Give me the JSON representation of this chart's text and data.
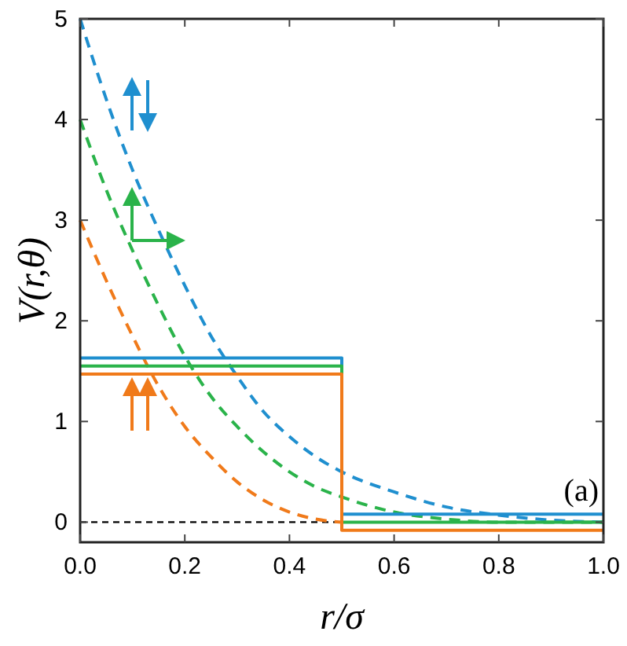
{
  "chart_data": {
    "type": "line",
    "xlabel": "r/σ",
    "ylabel": "V(r,θ)",
    "xlim": [
      0,
      1
    ],
    "ylim": [
      -0.2,
      5
    ],
    "xticks": [
      {
        "value": 0,
        "label": "0.0"
      },
      {
        "value": 0.2,
        "label": "0.2"
      },
      {
        "value": 0.4,
        "label": "0.4"
      },
      {
        "value": 0.6,
        "label": "0.6"
      },
      {
        "value": 0.8,
        "label": "0.8"
      },
      {
        "value": 1,
        "label": "1.0"
      }
    ],
    "yticks": [
      0,
      1,
      2,
      3,
      4,
      5
    ],
    "grid": false,
    "ref_lines": [
      {
        "axis": "y",
        "value": 0,
        "color": "#000000",
        "line_style": "dashed"
      }
    ],
    "annotations": [
      "(a)"
    ],
    "series": [
      {
        "line_style": "dashed",
        "color": "#1f8fcf",
        "x": [
          0,
          0.05,
          0.1,
          0.15,
          0.2,
          0.25,
          0.3,
          0.35,
          0.4,
          0.45,
          0.5,
          0.6,
          0.7,
          0.8,
          0.9,
          1
        ],
        "values": [
          5,
          4.2,
          3.5,
          2.9,
          2.35,
          1.85,
          1.45,
          1.1,
          0.85,
          0.65,
          0.5,
          0.3,
          0.15,
          0.07,
          0.02,
          0
        ]
      },
      {
        "line_style": "dashed",
        "color": "#2ab34a",
        "x": [
          0,
          0.05,
          0.1,
          0.15,
          0.2,
          0.25,
          0.3,
          0.35,
          0.4,
          0.45,
          0.5,
          0.6,
          0.7,
          0.8,
          1
        ],
        "values": [
          4,
          3.3,
          2.7,
          2.15,
          1.65,
          1.25,
          0.95,
          0.7,
          0.5,
          0.35,
          0.25,
          0.1,
          0.03,
          0,
          0
        ]
      },
      {
        "line_style": "dashed",
        "color": "#f07a1a",
        "x": [
          0,
          0.05,
          0.1,
          0.15,
          0.2,
          0.25,
          0.3,
          0.35,
          0.4,
          0.45,
          0.5
        ],
        "values": [
          3,
          2.4,
          1.85,
          1.35,
          0.95,
          0.65,
          0.4,
          0.22,
          0.1,
          0.03,
          0
        ]
      },
      {
        "type": "step",
        "line_style": "solid",
        "color": "#1f8fcf",
        "x": [
          0,
          0.5,
          1
        ],
        "values": [
          1.63,
          0.08,
          0.08
        ]
      },
      {
        "type": "step",
        "line_style": "solid",
        "color": "#2ab34a",
        "x": [
          0,
          0.5,
          1
        ],
        "values": [
          1.55,
          0,
          0
        ]
      },
      {
        "type": "step",
        "line_style": "solid",
        "color": "#f07a1a",
        "x": [
          0,
          0.5,
          1
        ],
        "values": [
          1.47,
          -0.08,
          -0.08
        ]
      }
    ]
  }
}
